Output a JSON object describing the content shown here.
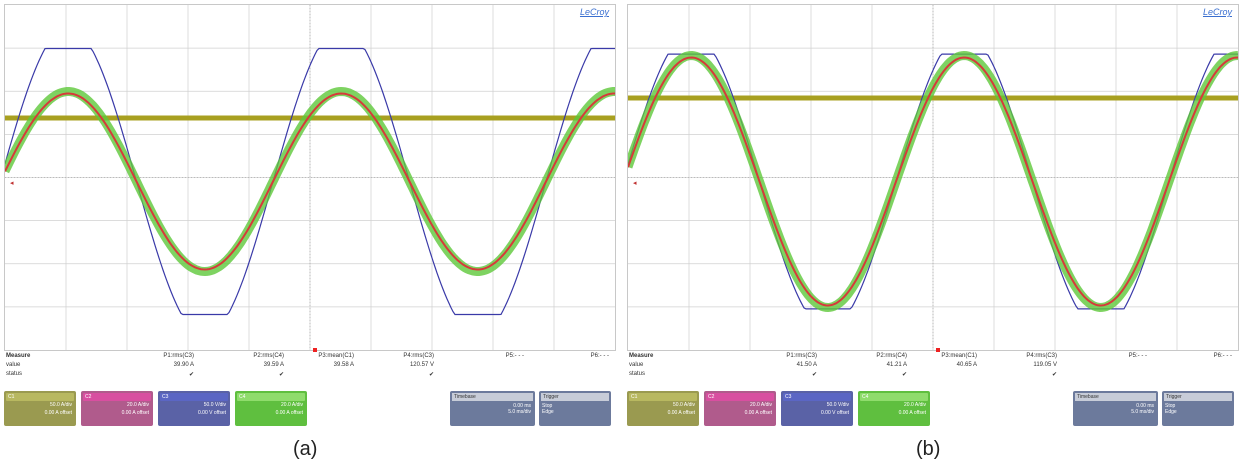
{
  "panels": [
    {
      "caption": "(a)",
      "brand": "LeCroy",
      "measure": {
        "label": "Measure",
        "value_label": "value",
        "status_label": "status",
        "params": [
          "P1:rms(C3)",
          "P2:rms(C4)",
          "P3:mean(C1)",
          "P4:rms(C3)",
          "P5:- - -",
          "P6:- - -"
        ],
        "values": [
          "39.90 A",
          "39.59 A",
          "39.58 A",
          "120.57 V",
          "",
          ""
        ],
        "status": [
          "✔",
          "✔",
          "",
          "✔",
          "",
          ""
        ]
      },
      "channels": [
        {
          "name": "C1",
          "scale": "50.0 A/div",
          "offset": "0.00 A offset",
          "color": "#8f8f3c"
        },
        {
          "name": "C2",
          "scale": "20.0 A/div",
          "offset": "0.00 A offset",
          "color": "#c8478e"
        },
        {
          "name": "C3",
          "scale": "50.0 V/div",
          "offset": "0.00 V offset",
          "color": "#5463b2"
        },
        {
          "name": "C4",
          "scale": "20.0 A/div",
          "offset": "0.00 A offset",
          "color": "#6cc24a"
        }
      ],
      "timebase": {
        "label": "Timebase",
        "value": "0.00 ms",
        "sub": "5.0 ms/div",
        "rate": "20.0 GS/s"
      },
      "trigger": {
        "label": "Trigger",
        "mode": "Stop",
        "type": "Edge",
        "slope": "Positive"
      }
    },
    {
      "caption": "(b)",
      "brand": "LeCroy",
      "measure": {
        "label": "Measure",
        "value_label": "value",
        "status_label": "status",
        "params": [
          "P1:rms(C3)",
          "P2:rms(C4)",
          "P3:mean(C1)",
          "P4:rms(C3)",
          "P5:- - -",
          "P6:- - -"
        ],
        "values": [
          "41.50 A",
          "41.21 A",
          "40.65 A",
          "119.05 V",
          "",
          ""
        ],
        "status": [
          "✔",
          "✔",
          "",
          "✔",
          "",
          ""
        ]
      },
      "channels": [
        {
          "name": "C1",
          "scale": "50.0 A/div",
          "offset": "0.00 A offset",
          "color": "#8f8f3c"
        },
        {
          "name": "C2",
          "scale": "20.0 A/div",
          "offset": "0.00 A offset",
          "color": "#c8478e"
        },
        {
          "name": "C3",
          "scale": "50.0 V/div",
          "offset": "0.00 V offset",
          "color": "#5463b2"
        },
        {
          "name": "C4",
          "scale": "20.0 A/div",
          "offset": "0.00 A offset",
          "color": "#6cc24a"
        }
      ],
      "timebase": {
        "label": "Timebase",
        "value": "0.00 ms",
        "sub": "5.0 ms/div",
        "rate": "20.0 GS/s"
      },
      "trigger": {
        "label": "Trigger",
        "mode": "Stop",
        "type": "Edge",
        "slope": "Positive"
      }
    }
  ],
  "colors": {
    "voltage_trace": "#3a3aa8",
    "current_green": "#5ec83a",
    "current_red": "#d63a3a",
    "dc_trace": "#a8a020",
    "grid": "#d0d0d0"
  }
}
